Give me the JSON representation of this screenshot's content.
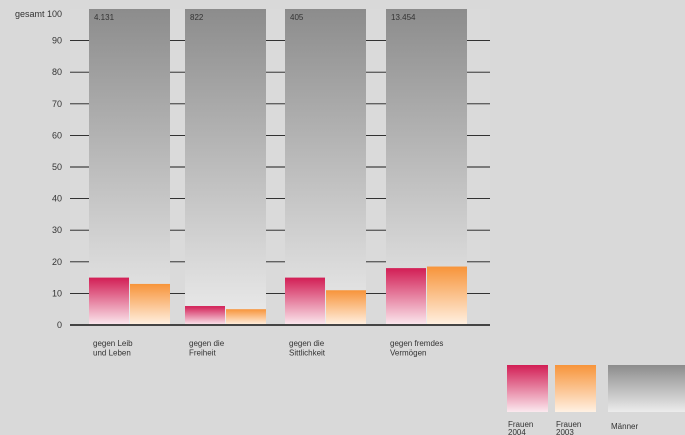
{
  "chart_data": {
    "type": "bar",
    "ytop_label": "gesamt 100",
    "yticks": [
      "90",
      "80",
      "70",
      "60",
      "50",
      "40",
      "30",
      "20",
      "10",
      "0"
    ],
    "ylim": [
      0,
      100
    ],
    "categories": [
      {
        "lines": [
          "gegen Leib",
          "und Leben"
        ],
        "total": "4.131"
      },
      {
        "lines": [
          "gegen die",
          "Freiheit"
        ],
        "total": "822"
      },
      {
        "lines": [
          "gegen die",
          "Sittlichkeit"
        ],
        "total": "405"
      },
      {
        "lines": [
          "gegen fremdes",
          "Vermögen"
        ],
        "total": "13.454"
      }
    ],
    "series": [
      {
        "name": "Frauen 2004",
        "label_lines": [
          "Frauen",
          "2004"
        ],
        "values": [
          15,
          6,
          15,
          18
        ],
        "color_top": "#d21e55",
        "color_bottom": "#fbe9ef"
      },
      {
        "name": "Frauen 2003",
        "label_lines": [
          "Frauen",
          "2003"
        ],
        "values": [
          13,
          5,
          11,
          18.5
        ],
        "color_top": "#f7943a",
        "color_bottom": "#fff1e3"
      },
      {
        "name": "Männer",
        "label_lines": [
          "Männer"
        ],
        "values": [
          100,
          100,
          100,
          100
        ],
        "color_top": "#8c8c8c",
        "color_bottom": "#ececec"
      }
    ]
  }
}
